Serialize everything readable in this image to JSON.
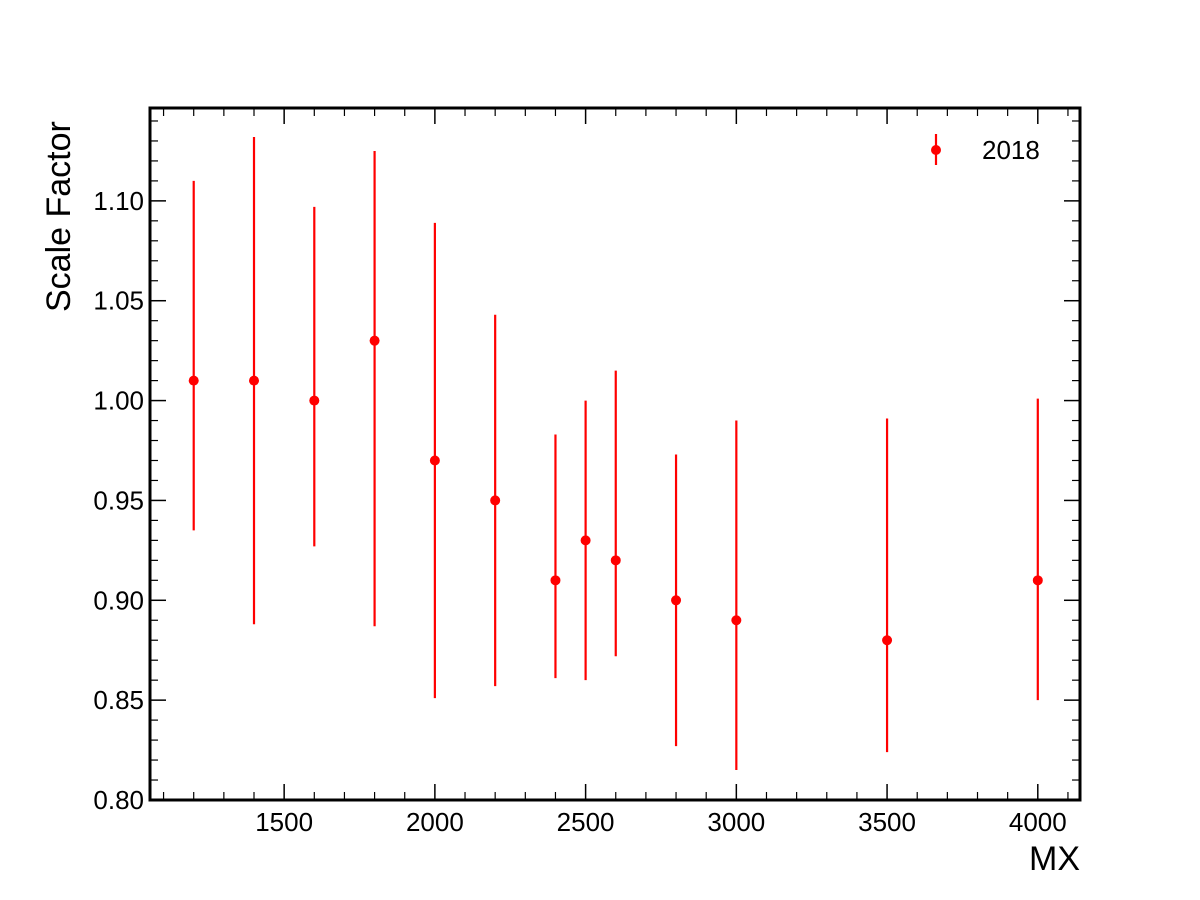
{
  "chart_data": {
    "type": "scatter",
    "xlabel": "MX",
    "ylabel": "Scale Factor",
    "xlim": [
      1055,
      4140
    ],
    "ylim": [
      0.8,
      1.1465
    ],
    "x_ticks": [
      1500,
      2000,
      2500,
      3000,
      3500,
      4000
    ],
    "x_tick_labels": [
      "1500",
      "2000",
      "2500",
      "3000",
      "3500",
      "4000"
    ],
    "y_ticks": [
      0.8,
      0.85,
      0.9,
      0.95,
      1.0,
      1.05,
      1.1
    ],
    "y_tick_labels": [
      "0.80",
      "0.85",
      "0.90",
      "0.95",
      "1.00",
      "1.05",
      "1.10"
    ],
    "grid": false,
    "legend_position": "top-right",
    "series": [
      {
        "name": "2018",
        "color": "#ff0000",
        "points": [
          {
            "x": 1200,
            "y": 1.01,
            "y_low": 0.935,
            "y_high": 1.11
          },
          {
            "x": 1400,
            "y": 1.01,
            "y_low": 0.888,
            "y_high": 1.132
          },
          {
            "x": 1600,
            "y": 1.0,
            "y_low": 0.927,
            "y_high": 1.097
          },
          {
            "x": 1800,
            "y": 1.03,
            "y_low": 0.887,
            "y_high": 1.125
          },
          {
            "x": 2000,
            "y": 0.97,
            "y_low": 0.851,
            "y_high": 1.089
          },
          {
            "x": 2200,
            "y": 0.95,
            "y_low": 0.857,
            "y_high": 1.043
          },
          {
            "x": 2400,
            "y": 0.91,
            "y_low": 0.861,
            "y_high": 0.983
          },
          {
            "x": 2500,
            "y": 0.93,
            "y_low": 0.86,
            "y_high": 1.0
          },
          {
            "x": 2600,
            "y": 0.92,
            "y_low": 0.872,
            "y_high": 1.015
          },
          {
            "x": 2800,
            "y": 0.9,
            "y_low": 0.827,
            "y_high": 0.973
          },
          {
            "x": 3000,
            "y": 0.89,
            "y_low": 0.815,
            "y_high": 0.99
          },
          {
            "x": 3500,
            "y": 0.88,
            "y_low": 0.824,
            "y_high": 0.991
          },
          {
            "x": 4000,
            "y": 0.91,
            "y_low": 0.85,
            "y_high": 1.001
          }
        ]
      }
    ]
  }
}
